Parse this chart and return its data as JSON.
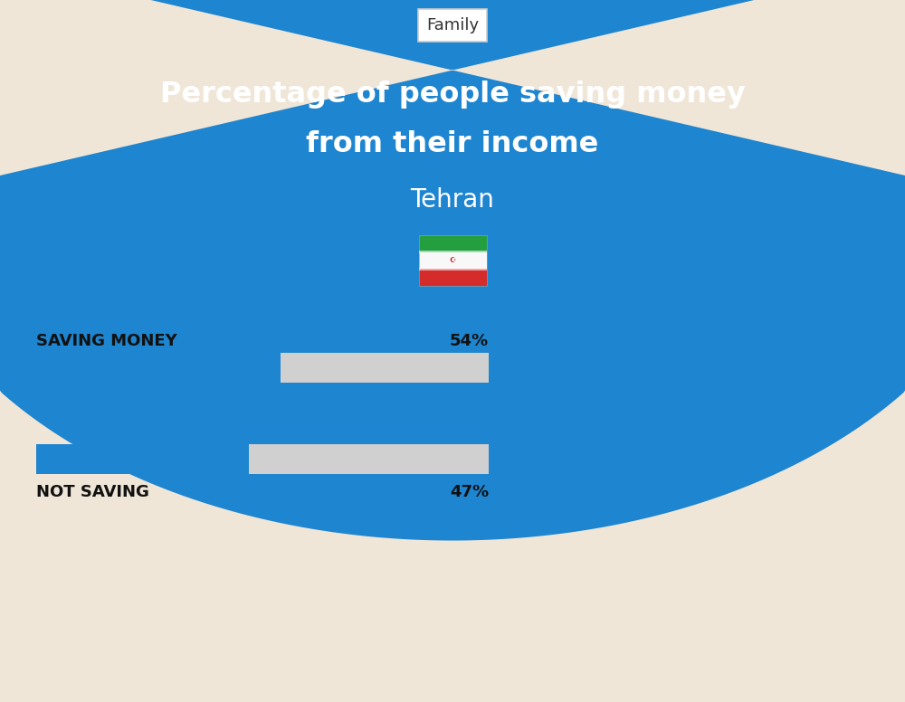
{
  "title_line1": "Percentage of people saving money",
  "title_line2": "from their income",
  "subtitle": "Tehran",
  "category_label": "Family",
  "bg_color": "#f0e6d8",
  "blue_bg_color": "#1e85d0",
  "bar1_label": "SAVING MONEY",
  "bar1_value": 54,
  "bar1_pct": "54%",
  "bar2_label": "NOT SAVING",
  "bar2_value": 47,
  "bar2_pct": "47%",
  "bar_fill_color": "#1e85d0",
  "bar_bg_color": "#d0d0d0",
  "title_color": "#ffffff",
  "subtitle_color": "#ffffff",
  "label_color": "#111111",
  "figure_width": 10.0,
  "figure_height": 7.76
}
